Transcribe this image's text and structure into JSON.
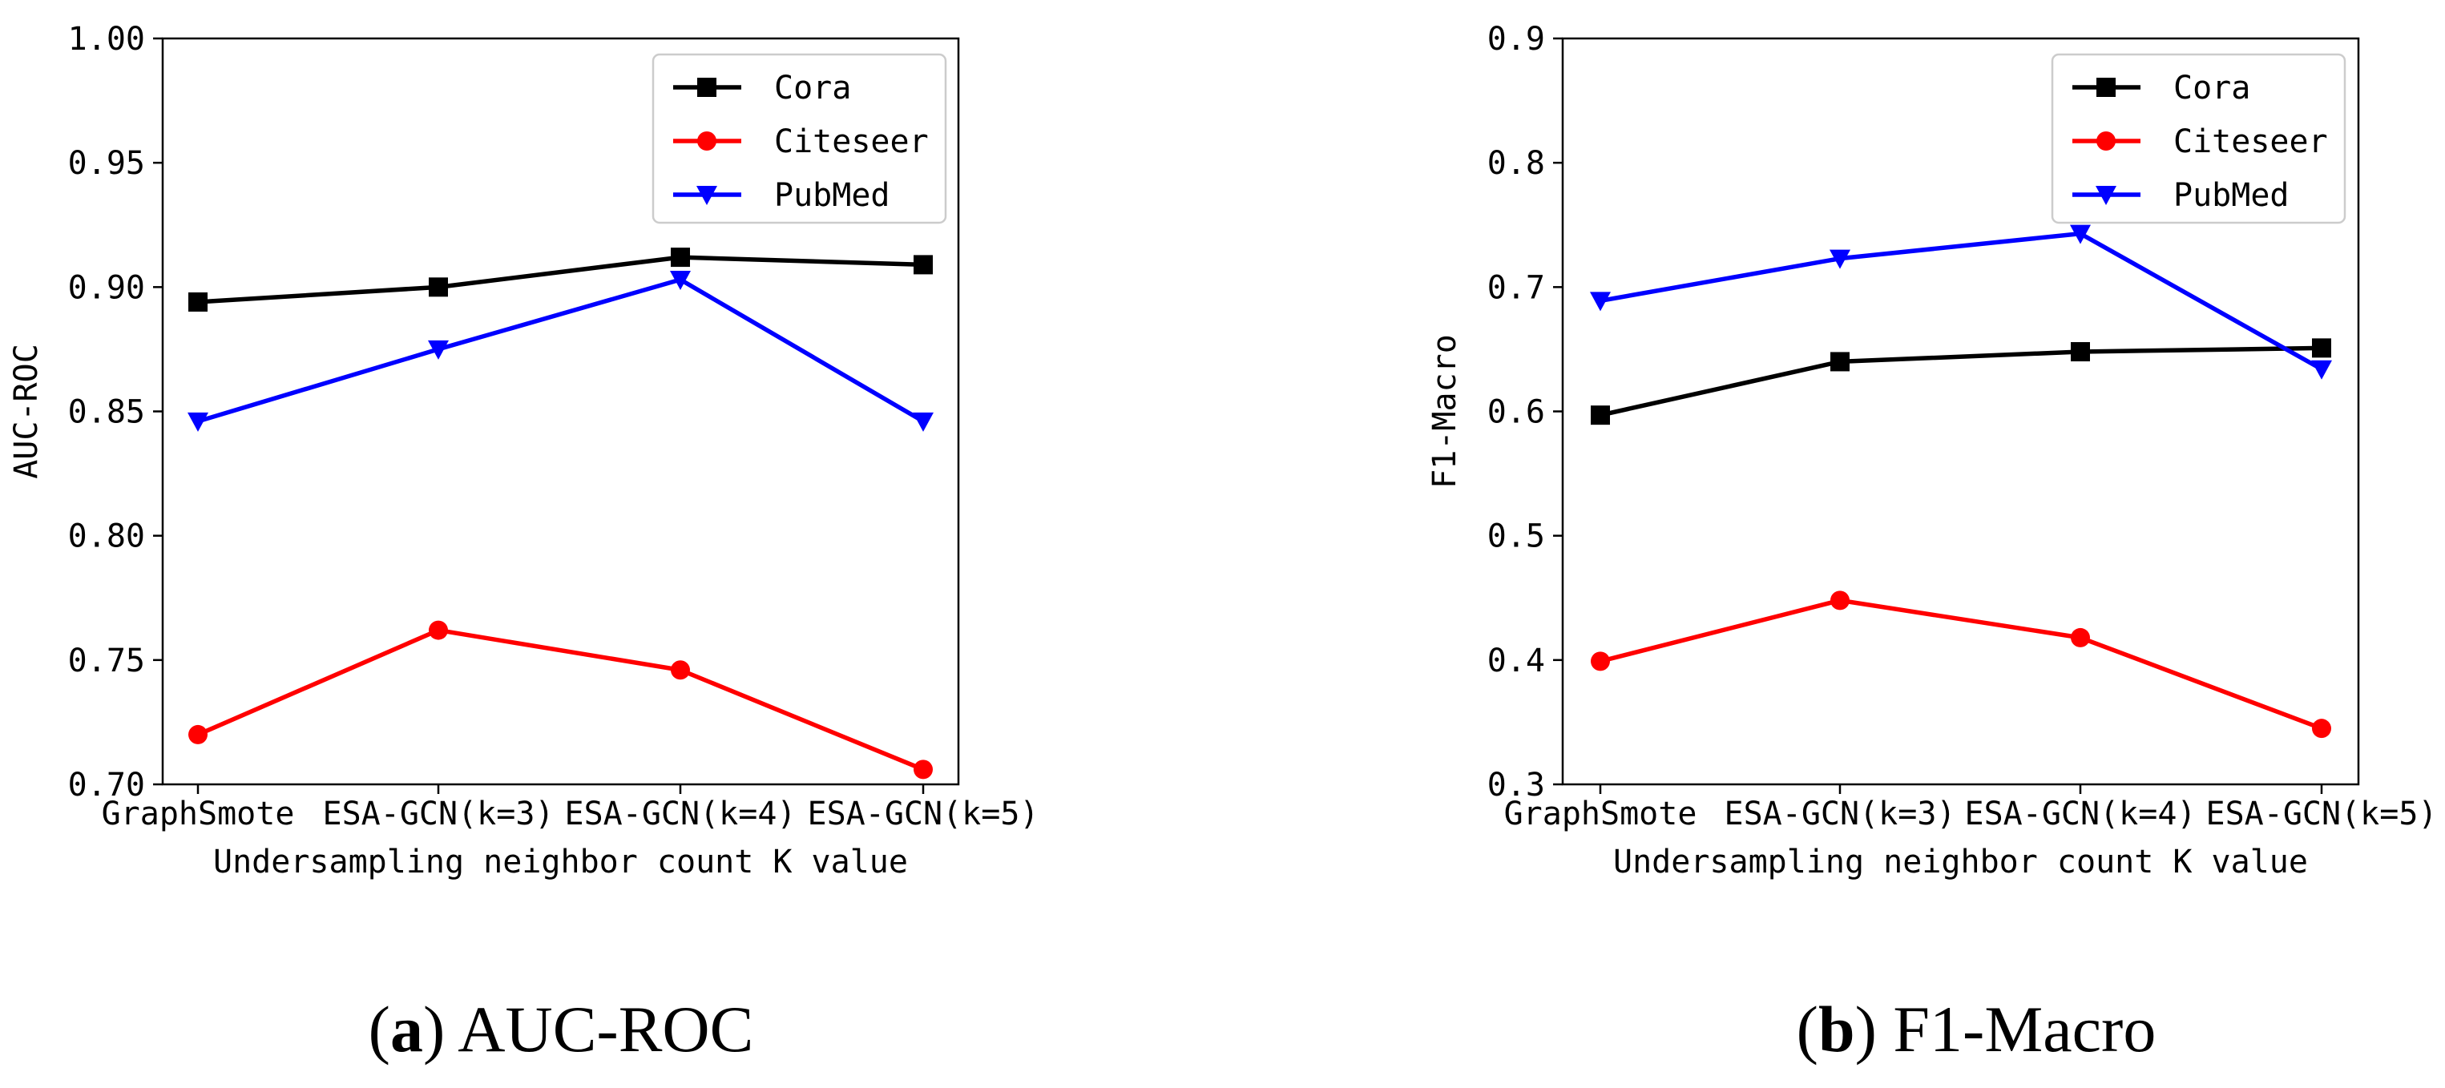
{
  "chart_data": [
    {
      "type": "line",
      "panel_id": "a",
      "caption_letter": "a",
      "caption_title": "AUC-ROC",
      "xlabel": "Undersampling neighbor count K value",
      "ylabel": "AUC-ROC",
      "categories": [
        "GraphSmote",
        "ESA-GCN(k=3)",
        "ESA-GCN(k=4)",
        "ESA-GCN(k=5)"
      ],
      "ylim": [
        0.7,
        1.0
      ],
      "yticks": [
        "0.70",
        "0.75",
        "0.80",
        "0.85",
        "0.90",
        "0.95",
        "1.00"
      ],
      "grid": false,
      "legend_position": "top-right",
      "series": [
        {
          "name": "Cora",
          "color": "#000000",
          "marker": "square",
          "values": [
            0.894,
            0.9,
            0.912,
            0.909
          ]
        },
        {
          "name": "Citeseer",
          "color": "#ff0000",
          "marker": "circle",
          "values": [
            0.72,
            0.762,
            0.746,
            0.706
          ]
        },
        {
          "name": "PubMed",
          "color": "#0000ff",
          "marker": "triangle-down",
          "values": [
            0.846,
            0.875,
            0.903,
            0.846
          ]
        }
      ]
    },
    {
      "type": "line",
      "panel_id": "b",
      "caption_letter": "b",
      "caption_title": "F1-Macro",
      "xlabel": "Undersampling neighbor count K value",
      "ylabel": "F1-Macro",
      "categories": [
        "GraphSmote",
        "ESA-GCN(k=3)",
        "ESA-GCN(k=4)",
        "ESA-GCN(k=5)"
      ],
      "ylim": [
        0.3,
        0.9
      ],
      "yticks": [
        "0.3",
        "0.4",
        "0.5",
        "0.6",
        "0.7",
        "0.8",
        "0.9"
      ],
      "grid": false,
      "legend_position": "top-right",
      "series": [
        {
          "name": "Cora",
          "color": "#000000",
          "marker": "square",
          "values": [
            0.597,
            0.64,
            0.648,
            0.651
          ]
        },
        {
          "name": "Citeseer",
          "color": "#ff0000",
          "marker": "circle",
          "values": [
            0.399,
            0.448,
            0.418,
            0.345
          ]
        },
        {
          "name": "PubMed",
          "color": "#0000ff",
          "marker": "triangle-down",
          "values": [
            0.689,
            0.723,
            0.743,
            0.634
          ]
        }
      ]
    }
  ]
}
